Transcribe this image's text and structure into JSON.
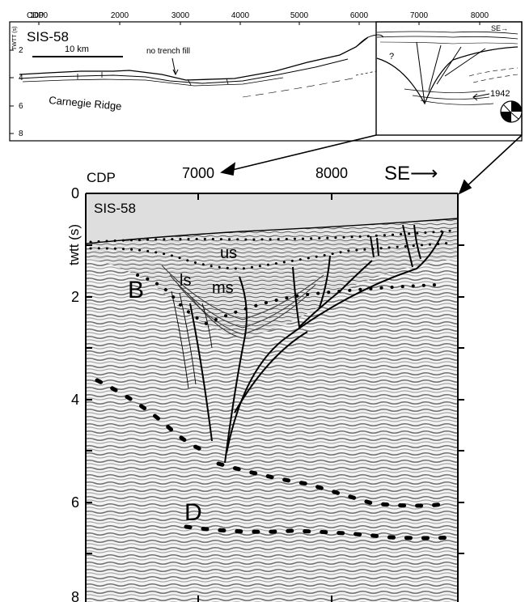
{
  "overview": {
    "cdp_label": "CDP",
    "cdp_ticks": [
      "1000",
      "2000",
      "3000",
      "4000",
      "5000",
      "6000",
      "7000",
      "8000"
    ],
    "axis_title": "TWTT (s)",
    "twtt_ticks": [
      "2",
      "4",
      "6",
      "8"
    ],
    "section_name": "SIS-58",
    "scale_label": "10 km",
    "trench_note": "no trench fill",
    "ridge_label": "Carnegie Ridge",
    "direction": "SE→",
    "event_year": "1942",
    "question_mark": "?"
  },
  "detail": {
    "cdp_label": "CDP",
    "cdp_ticks": [
      "7000",
      "8000"
    ],
    "direction": "SE⟶",
    "section_name": "SIS-58",
    "axis_title": "twtt (s)",
    "twtt_ticks": [
      "0",
      "2",
      "4",
      "6",
      "8"
    ],
    "unit_labels": {
      "us": "us",
      "ls": "ls",
      "ms": "ms",
      "B": "B",
      "D": "D"
    }
  },
  "colors": {
    "water": "#dedede",
    "seismic_dark": "#6a6a6a",
    "seismic_light": "#f2f2f2",
    "ink": "#000000"
  }
}
